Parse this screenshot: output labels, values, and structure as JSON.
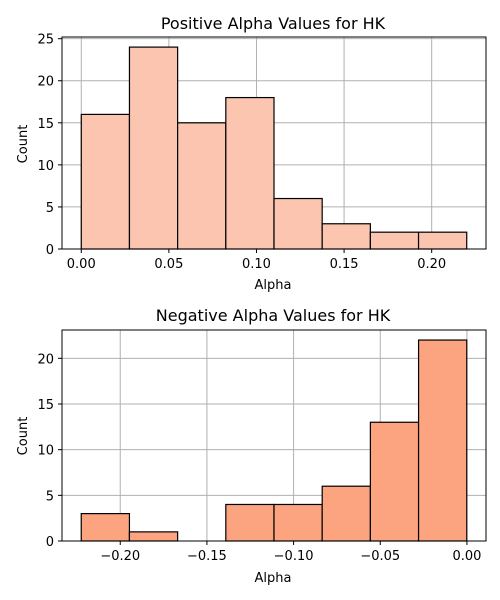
{
  "chart_data": [
    {
      "type": "bar",
      "title": "Positive Alpha Values for HK",
      "xlabel": "Alpha",
      "ylabel": "Count",
      "bin_edges": [
        0.0,
        0.0275,
        0.055,
        0.0825,
        0.11,
        0.1375,
        0.165,
        0.1925,
        0.22
      ],
      "values": [
        16,
        24,
        15,
        18,
        6,
        3,
        2,
        2
      ],
      "xlim": [
        -0.011,
        0.231
      ],
      "ylim": [
        0,
        25.2
      ],
      "xticks": [
        0.0,
        0.05,
        0.1,
        0.15,
        0.2
      ],
      "xtick_labels": [
        "0.00",
        "0.05",
        "0.10",
        "0.15",
        "0.20"
      ],
      "yticks": [
        0,
        5,
        10,
        15,
        20,
        25
      ],
      "ytick_labels": [
        "0",
        "5",
        "10",
        "15",
        "20",
        "25"
      ],
      "bar_color": "#fcc5b0",
      "edge_color": "#000000",
      "grid": true
    },
    {
      "type": "bar",
      "title": "Negative Alpha Values for HK",
      "xlabel": "Alpha",
      "ylabel": "Count",
      "bin_edges": [
        -0.2225,
        -0.1947,
        -0.1669,
        -0.1391,
        -0.1113,
        -0.0835,
        -0.0557,
        -0.0279,
        -0.0001
      ],
      "values": [
        3,
        1,
        0,
        4,
        4,
        6,
        13,
        22
      ],
      "xlim": [
        -0.2336,
        0.011
      ],
      "ylim": [
        0,
        23.1
      ],
      "xticks": [
        -0.2,
        -0.15,
        -0.1,
        -0.05,
        0.0
      ],
      "xtick_labels": [
        "−0.20",
        "−0.15",
        "−0.10",
        "−0.05",
        "0.00"
      ],
      "yticks": [
        0,
        5,
        10,
        15,
        20
      ],
      "ytick_labels": [
        "0",
        "5",
        "10",
        "15",
        "20"
      ],
      "bar_color": "#fca37f",
      "edge_color": "#000000",
      "grid": true
    }
  ]
}
